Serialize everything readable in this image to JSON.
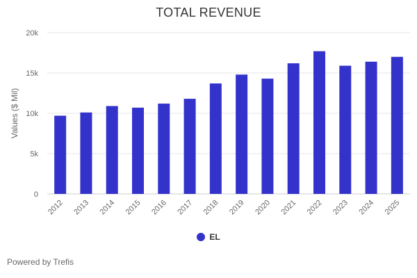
{
  "chart_data": {
    "type": "bar",
    "title": "TOTAL REVENUE",
    "ylabel": "Values ($ Mil)",
    "xlabel": "",
    "ylim": [
      0,
      20000
    ],
    "yticks": [
      0,
      5000,
      10000,
      15000,
      20000
    ],
    "ytick_labels": [
      "0",
      "5k",
      "10k",
      "15k",
      "20k"
    ],
    "grid": true,
    "legend_position": "bottom-center",
    "categories": [
      "2012",
      "2013",
      "2014",
      "2015",
      "2016",
      "2017",
      "2018",
      "2019",
      "2020",
      "2021",
      "2022",
      "2023",
      "2024",
      "2025"
    ],
    "series": [
      {
        "name": "EL",
        "color": "#3333cc",
        "values": [
          9700,
          10100,
          10900,
          10700,
          11200,
          11800,
          13700,
          14800,
          14300,
          16200,
          17700,
          15900,
          16400,
          17000
        ]
      }
    ]
  },
  "footer": {
    "credit": "Powered by Trefis"
  }
}
